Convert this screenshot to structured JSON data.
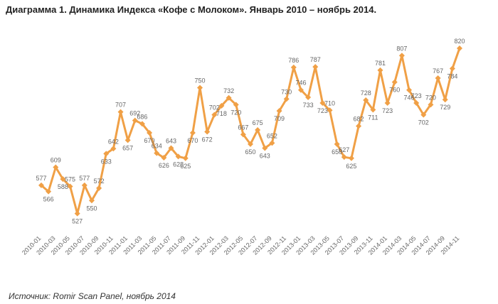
{
  "title": "Диаграмма 1. Динамика Индекса «Кофе с Молоком». Январь 2010 – ноябрь 2014.",
  "source": "Источник: Romir Scan Panel, ноябрь 2014",
  "colors": {
    "line": "#f0a046",
    "marker": "#f0a046",
    "text": "#666666"
  },
  "chart_data": {
    "type": "line",
    "title": "Диаграмма 1. Динамика Индекса «Кофе с Молоком». Январь 2010 – ноябрь 2014.",
    "xlabel": "",
    "ylabel": "",
    "grid": false,
    "legend": "none",
    "x": [
      "2010-01",
      "2010-02",
      "2010-03",
      "2010-04",
      "2010-05",
      "2010-06",
      "2010-07",
      "2010-08",
      "2010-09",
      "2010-10",
      "2010-11",
      "2010-12",
      "2011-01",
      "2011-02",
      "2011-03",
      "2011-04",
      "2011-05",
      "2011-06",
      "2011-07",
      "2011-08",
      "2011-09",
      "2011-10",
      "2011-11",
      "2011-12",
      "2012-01",
      "2012-02",
      "2012-03",
      "2012-04",
      "2012-05",
      "2012-06",
      "2012-07",
      "2012-08",
      "2012-09",
      "2012-10",
      "2012-11",
      "2012-12",
      "2013-01",
      "2013-02",
      "2013-03",
      "2013-04",
      "2013-05",
      "2013-06",
      "2013-07",
      "2013-08",
      "2013-09",
      "2013-10",
      "2013-11",
      "2013-12",
      "2014-01",
      "2014-02",
      "2014-03",
      "2014-04",
      "2014-05",
      "2014-06",
      "2014-07",
      "2014-08",
      "2014-09",
      "2014-10",
      "2014-11"
    ],
    "tick_labels": [
      "2010-01",
      "2010-03",
      "2010-05",
      "2010-07",
      "2010-09",
      "2010-11",
      "2011-01",
      "2011-03",
      "2011-05",
      "2011-07",
      "2011-09",
      "2011-11",
      "2012-01",
      "2012-03",
      "2012-05",
      "2012-07",
      "2012-09",
      "2012-11",
      "2013-01",
      "2013-03",
      "2013-05",
      "2013-07",
      "2013-09",
      "2013-11",
      "2014-01",
      "2014-03",
      "2014-05",
      "2014-07",
      "2014-09",
      "2014-11"
    ],
    "values": [
      577,
      566,
      609,
      588,
      575,
      527,
      577,
      550,
      572,
      633,
      642,
      707,
      657,
      692,
      686,
      670,
      634,
      626,
      643,
      628,
      625,
      670,
      750,
      672,
      702,
      718,
      732,
      720,
      667,
      650,
      675,
      643,
      652,
      709,
      730,
      786,
      746,
      733,
      787,
      723,
      710,
      650,
      627,
      625,
      682,
      728,
      711,
      781,
      723,
      760,
      807,
      746,
      723,
      702,
      720,
      767,
      729,
      784,
      820
    ],
    "ylim": [
      500,
      830
    ]
  }
}
